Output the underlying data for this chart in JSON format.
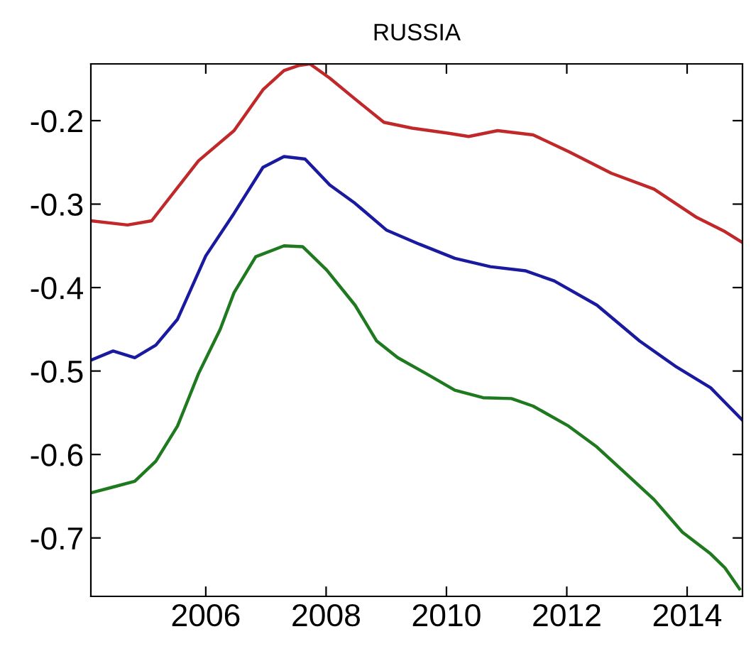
{
  "chart_data": {
    "type": "line",
    "title": "RUSSIA",
    "xlim": [
      2004.09,
      2014.92
    ],
    "xticks": [
      2006,
      2008,
      2010,
      2012,
      2014
    ],
    "ylim": [
      -0.77,
      -0.132
    ],
    "yticks": [
      -0.7,
      -0.6,
      -0.5,
      -0.4,
      -0.3,
      -0.2
    ],
    "grid": false,
    "legend": false,
    "marker": "none",
    "line_style": "solid",
    "series": [
      {
        "color": "#c0282a",
        "x": [
          2004.09,
          2004.7,
          2005.1,
          2005.88,
          2006.47,
          2006.95,
          2007.3,
          2007.54,
          2007.73,
          2008.06,
          2008.48,
          2008.96,
          2009.43,
          2010.02,
          2010.37,
          2010.85,
          2011.44,
          2012.03,
          2012.74,
          2013.45,
          2014.16,
          2014.63,
          2014.92
        ],
        "values": [
          -0.32,
          -0.325,
          -0.32,
          -0.248,
          -0.212,
          -0.163,
          -0.14,
          -0.134,
          -0.132,
          -0.149,
          -0.174,
          -0.202,
          -0.209,
          -0.215,
          -0.219,
          -0.212,
          -0.217,
          -0.237,
          -0.263,
          -0.282,
          -0.316,
          -0.333,
          -0.346
        ]
      },
      {
        "color": "#1a1aa0",
        "x": [
          2004.09,
          2004.46,
          2004.82,
          2005.17,
          2005.53,
          2006.0,
          2006.47,
          2006.95,
          2007.3,
          2007.65,
          2008.06,
          2008.48,
          2009.0,
          2009.55,
          2010.14,
          2010.73,
          2011.32,
          2011.79,
          2012.5,
          2013.21,
          2013.8,
          2014.39,
          2014.92
        ],
        "values": [
          -0.487,
          -0.476,
          -0.484,
          -0.469,
          -0.438,
          -0.362,
          -0.311,
          -0.256,
          -0.243,
          -0.246,
          -0.277,
          -0.299,
          -0.331,
          -0.348,
          -0.365,
          -0.375,
          -0.38,
          -0.392,
          -0.421,
          -0.464,
          -0.494,
          -0.52,
          -0.559
        ]
      },
      {
        "color": "#1f7a1f",
        "x": [
          2004.09,
          2004.46,
          2004.82,
          2005.17,
          2005.53,
          2005.88,
          2006.24,
          2006.47,
          2006.83,
          2007.3,
          2007.61,
          2008.01,
          2008.48,
          2008.84,
          2009.19,
          2009.66,
          2010.14,
          2010.61,
          2011.08,
          2011.44,
          2012.03,
          2012.5,
          2012.97,
          2013.45,
          2013.92,
          2014.39,
          2014.63,
          2014.87
        ],
        "values": [
          -0.646,
          -0.639,
          -0.632,
          -0.608,
          -0.566,
          -0.503,
          -0.45,
          -0.406,
          -0.363,
          -0.35,
          -0.351,
          -0.379,
          -0.421,
          -0.464,
          -0.484,
          -0.503,
          -0.523,
          -0.532,
          -0.533,
          -0.542,
          -0.566,
          -0.591,
          -0.622,
          -0.654,
          -0.693,
          -0.719,
          -0.736,
          -0.761
        ]
      }
    ]
  }
}
